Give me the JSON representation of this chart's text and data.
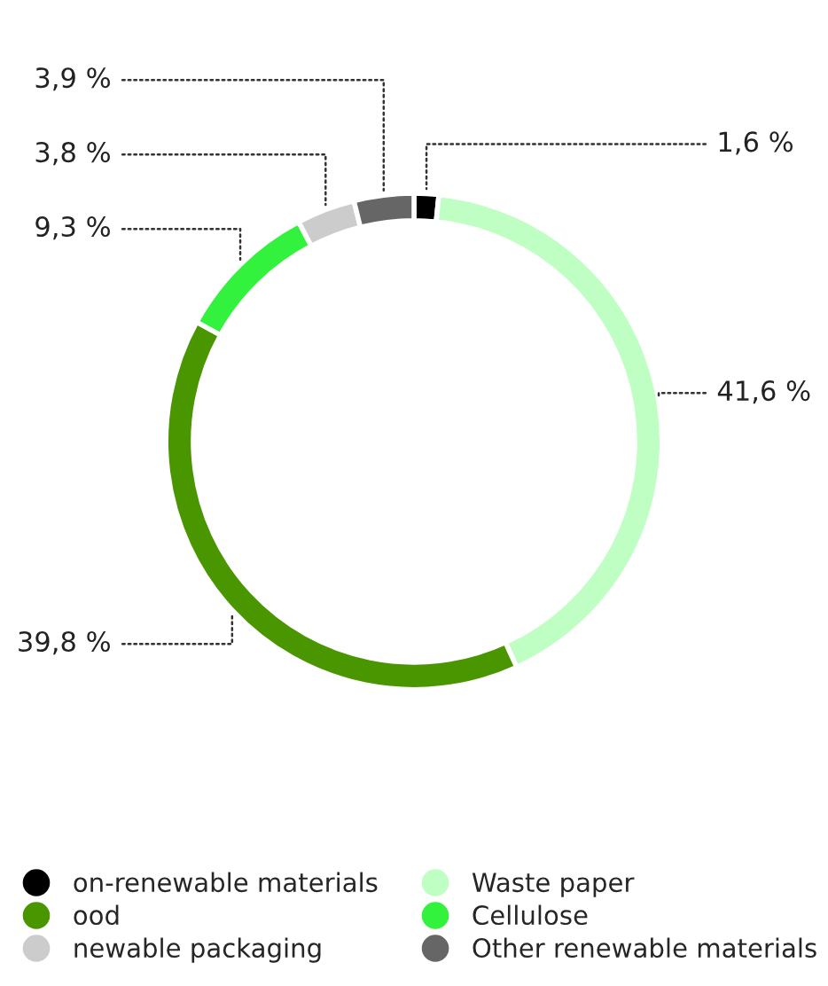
{
  "chart_data": {
    "type": "donut",
    "categories": [
      "on-renewable materials",
      "Waste paper",
      "ood",
      "Cellulose",
      "newable packaging",
      "Other renewable materials"
    ],
    "values": [
      1.6,
      41.6,
      39.8,
      9.3,
      3.8,
      3.9
    ],
    "colors": [
      "#000000",
      "#bfffc4",
      "#4a9600",
      "#33f23d",
      "#cccccc",
      "#666666"
    ],
    "value_labels": [
      "1,6 %",
      "41,6 %",
      "39,8 %",
      "9,3 %",
      "3,8 %",
      "3,9 %"
    ],
    "legend": "bottom"
  }
}
